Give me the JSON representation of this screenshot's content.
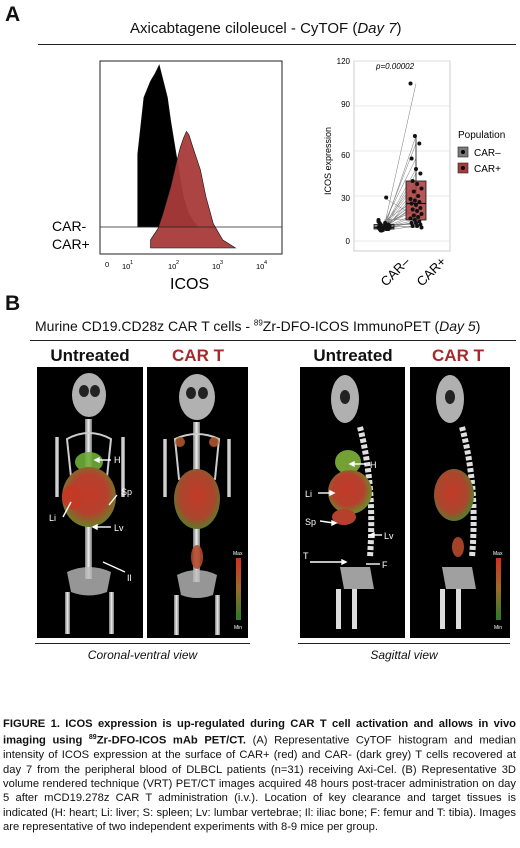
{
  "panel_a": {
    "letter": "A",
    "title_main": "Axicabtagene ciloleucel - CyTOF  (",
    "title_day": "Day 7",
    "title_close": ")",
    "histogram": {
      "xlabel": "ICOS",
      "label_neg": "CAR-",
      "label_pos": "CAR+",
      "ticks": [
        "0",
        "10",
        "1",
        "10",
        "2",
        "10",
        "3",
        "10",
        "4"
      ]
    },
    "boxplot": {
      "pvalue": "p=0.00002",
      "ylabel": "ICOS expression",
      "yticks": [
        "0",
        "30",
        "60",
        "90",
        "120"
      ],
      "categories": [
        "CAR–",
        "CAR+"
      ],
      "legend_title": "Population",
      "legend_items": [
        "CAR–",
        "CAR+"
      ]
    }
  },
  "panel_b": {
    "letter": "B",
    "title_main": "Murine CD19.CD28z CAR T cells - ",
    "title_sup": "89",
    "title_mid": "Zr-DFO-ICOS ImmunoPET (",
    "title_day": "Day 5",
    "title_close": ")",
    "col_untreated_1": "Untreated",
    "col_cart_1": "CAR T",
    "col_untreated_2": "Untreated",
    "col_cart_2": "CAR T",
    "coronal_labels": {
      "H": "H",
      "Sp": "Sp",
      "Li": "Li",
      "Lv": "Lv",
      "Il": "Il"
    },
    "sagittal_labels": {
      "H": "H",
      "Li": "Li",
      "Sp": "Sp",
      "Lv": "Lv",
      "T": "T",
      "F": "F"
    },
    "scale_max": "Max",
    "scale_min": "Min",
    "view_coronal": "Coronal-ventral view",
    "view_sagittal": "Sagittal view"
  },
  "caption": {
    "bold1": "FIGURE 1. ICOS expression is up-regulated during CAR T cell activation and allows in vivo imaging using ",
    "bold_sup": "89",
    "bold2": "Zr-DFO-ICOS mAb PET/CT.",
    "body": " (A) Representative CyTOF histogram and median intensity of ICOS expression at the surface of CAR+ (red) and CAR- (dark grey) T cells recovered at day 7 from the peripheral blood of DLBCL patients (n=31) receiving Axi-Cel. (B) Representative 3D volume rendered technique (VRT) PET/CT images acquired 48 hours post-tracer administration on day 5 after mCD19.278z CAR T administration (i.v.). Location of key clearance and target tissues is indicated (H: heart; Li: liver; S: spleen; Lv: lumbar vertebrae; Il: iliac bone; F: femur and T: tibia). Images are representative of two independent experiments with 8-9 mice per group."
  },
  "chart_data": [
    {
      "type": "area",
      "title": "",
      "xlabel": "ICOS",
      "x_scale": "log",
      "xlim": [
        0,
        10000
      ],
      "series": [
        {
          "name": "CAR-",
          "color": "#000000",
          "x": [
            5,
            7,
            10,
            13,
            16,
            20,
            25,
            30,
            40,
            50,
            60,
            80,
            100,
            130
          ],
          "values": [
            0.45,
            0.8,
            0.9,
            0.95,
            1.0,
            0.9,
            0.8,
            0.65,
            0.45,
            0.3,
            0.18,
            0.08,
            0.04,
            0.0
          ]
        },
        {
          "name": "CAR+",
          "color": "#a83a3a",
          "x": [
            10,
            15,
            20,
            30,
            40,
            50,
            60,
            70,
            80,
            100,
            150,
            200,
            300,
            500,
            1000
          ],
          "values": [
            0.05,
            0.12,
            0.22,
            0.38,
            0.52,
            0.62,
            0.68,
            0.72,
            0.7,
            0.62,
            0.48,
            0.32,
            0.15,
            0.05,
            0.0
          ]
        }
      ]
    },
    {
      "type": "box",
      "title": "",
      "ylabel": "ICOS expression",
      "ylim": [
        0,
        120
      ],
      "categories": [
        "CAR–",
        "CAR+"
      ],
      "annotation": "p=0.00002",
      "series": [
        {
          "name": "CAR–",
          "color": "#7a7a7a",
          "box": {
            "min": 6,
            "q1": 8,
            "median": 9,
            "q3": 11,
            "max": 13
          },
          "points": [
            9,
            8,
            10,
            12,
            9,
            8,
            11,
            10,
            9,
            7,
            8,
            13,
            9,
            10,
            8,
            9,
            11,
            10,
            12,
            9,
            8,
            29,
            14,
            9,
            8,
            10,
            9,
            11,
            7,
            9,
            10
          ]
        },
        {
          "name": "CAR+",
          "color": "#a83a3a",
          "box": {
            "min": 9,
            "q1": 14,
            "median": 25,
            "q3": 40,
            "max": 70
          },
          "points": [
            105,
            70,
            65,
            55,
            48,
            45,
            40,
            38,
            35,
            33,
            30,
            28,
            27,
            26,
            25,
            24,
            22,
            21,
            20,
            18,
            17,
            16,
            15,
            14,
            13,
            12,
            12,
            11,
            10,
            10,
            9
          ]
        }
      ]
    }
  ]
}
